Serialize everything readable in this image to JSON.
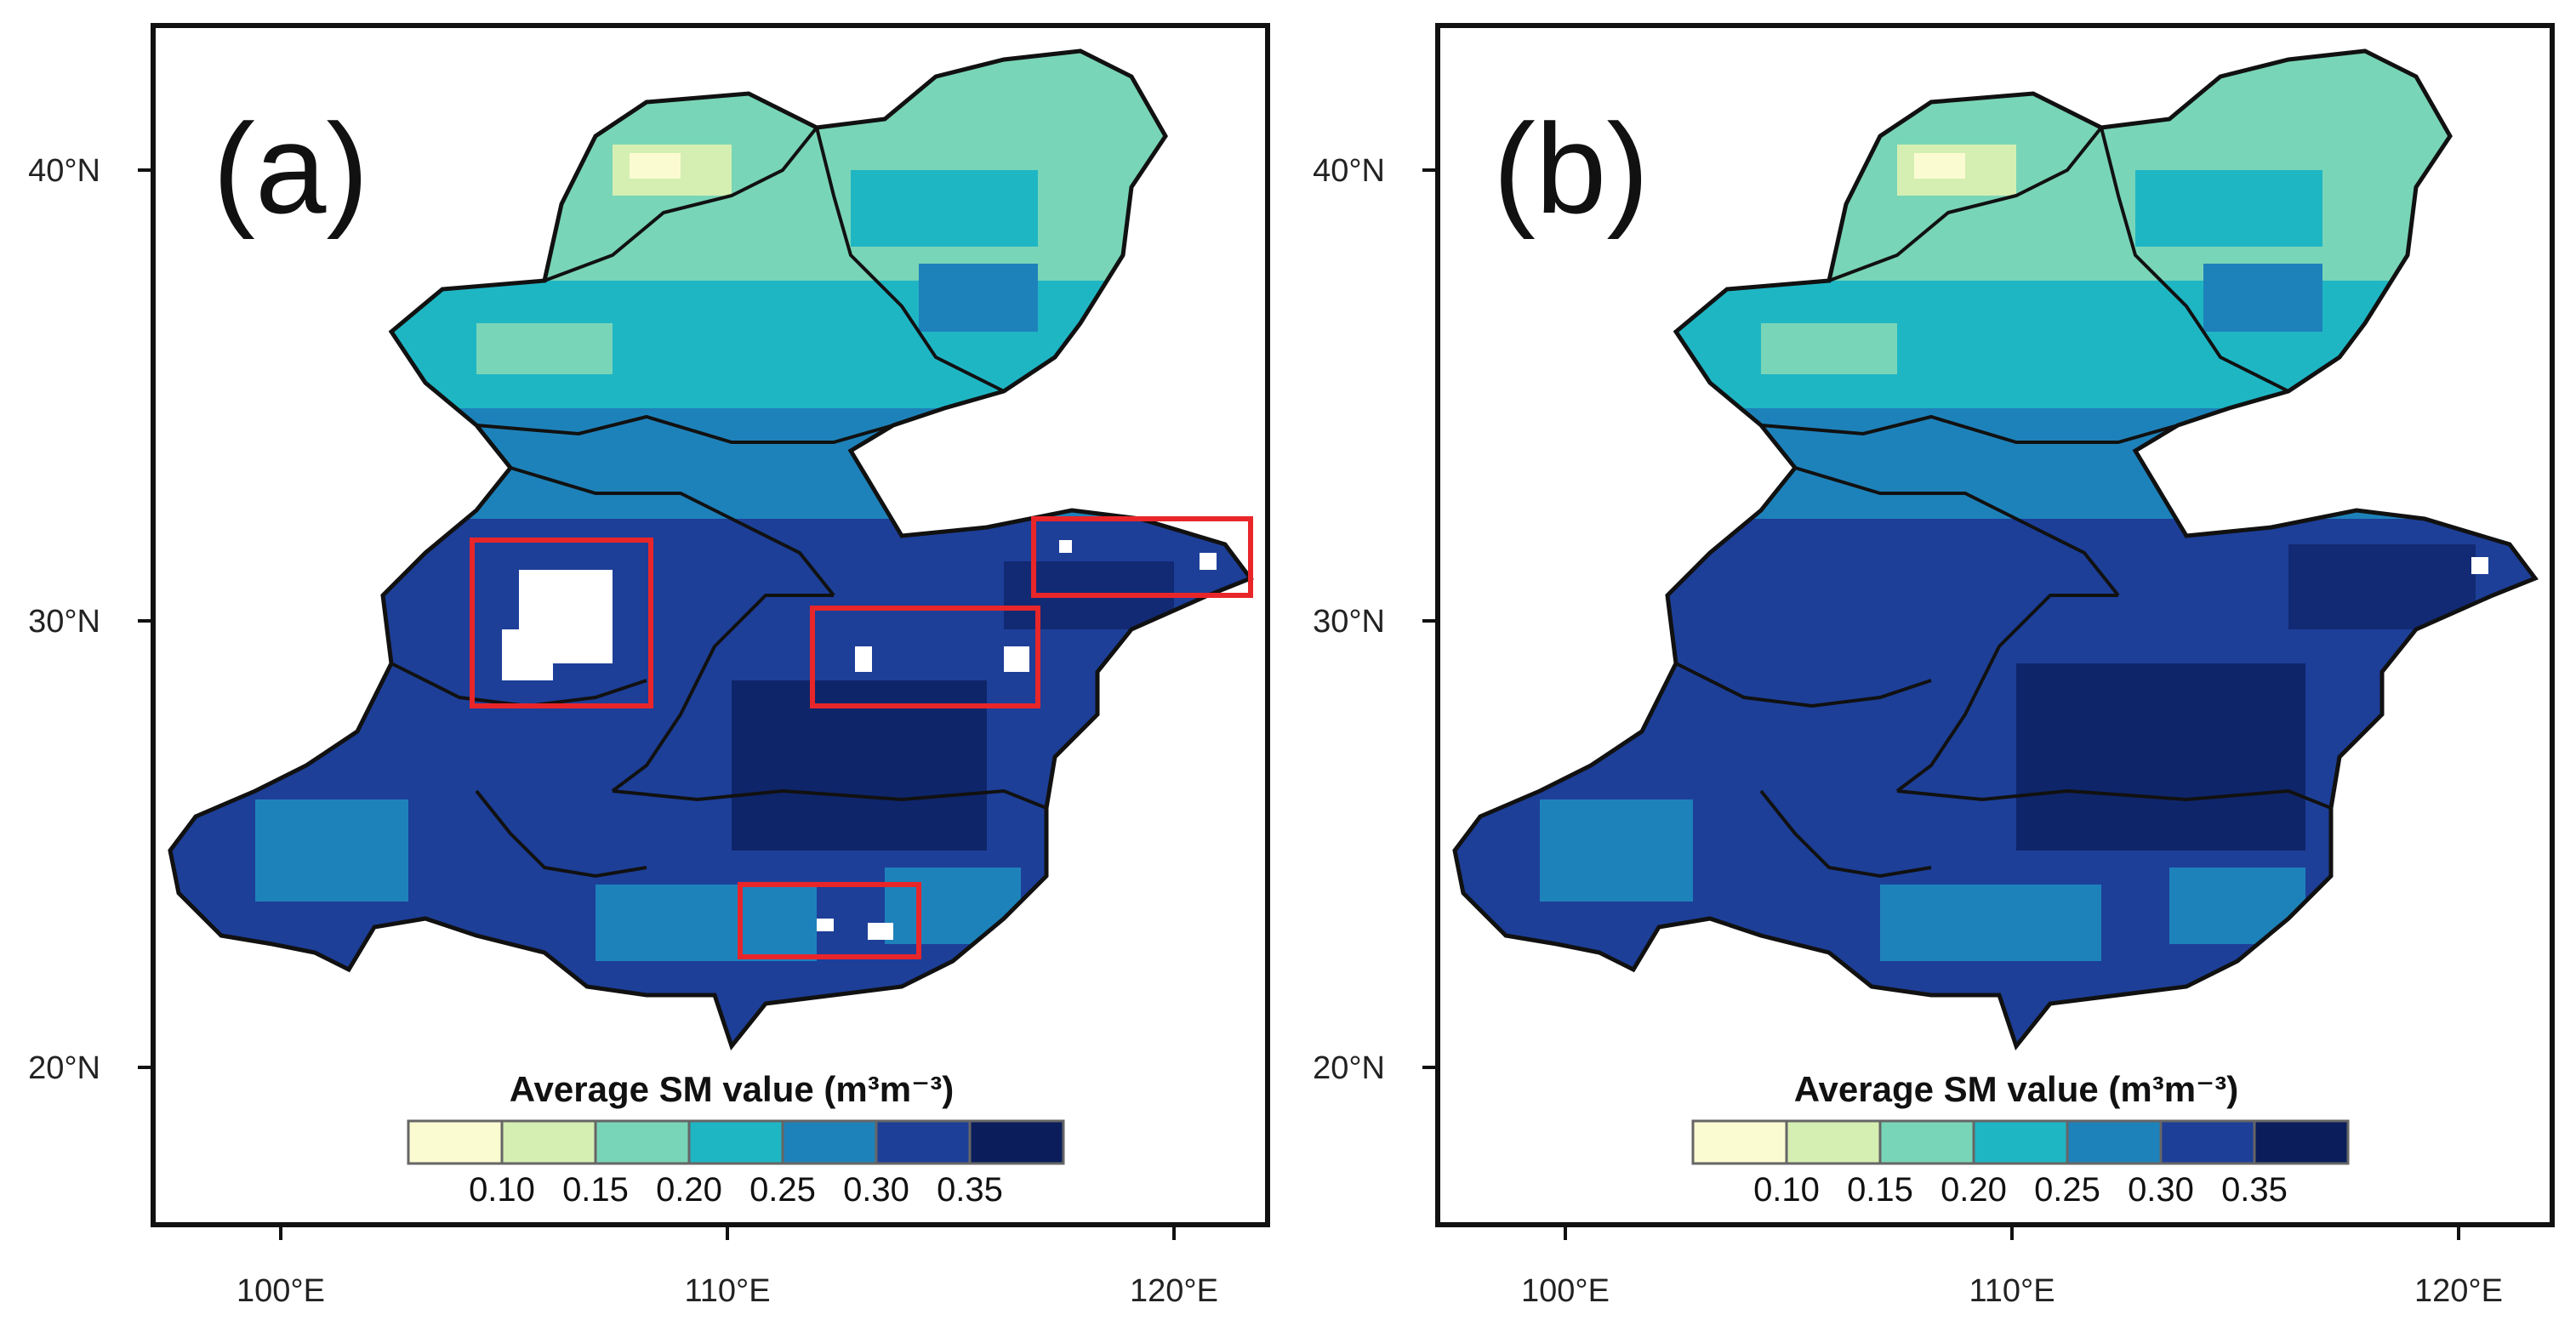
{
  "figure": {
    "colorbar_colors": [
      "#fbfbd2",
      "#d5efb2",
      "#79d5b7",
      "#1fb6c4",
      "#1e82ba",
      "#1d3f98",
      "#0b1d5a"
    ],
    "land_fill_colors": {
      "north_dry": "#79d5b7",
      "north_mid": "#1fb6c4",
      "transition": "#1e82ba",
      "south_wet": "#1d3f98",
      "very_wet": "#0b1d5a",
      "boundary": "#111111",
      "highlight_box": "#e8262a",
      "missing": "#ffffff"
    },
    "panels": [
      {
        "id": "a",
        "label": "(a)",
        "lat_ticks": [
          "40°N",
          "30°N",
          "20°N"
        ],
        "lon_ticks": [
          "100°E",
          "110°E",
          "120°E"
        ],
        "colorbar_title": "Average SM value (m³m⁻³)",
        "colorbar_ticks": [
          "0.10",
          "0.15",
          "0.20",
          "0.25",
          "0.30",
          "0.35"
        ],
        "highlight_boxes": 4
      },
      {
        "id": "b",
        "label": "(b)",
        "lat_ticks": [
          "40°N",
          "30°N",
          "20°N"
        ],
        "lon_ticks": [
          "100°E",
          "110°E",
          "120°E"
        ],
        "colorbar_title": "Average SM value (m³m⁻³)",
        "colorbar_ticks": [
          "0.10",
          "0.15",
          "0.20",
          "0.25",
          "0.30",
          "0.35"
        ],
        "highlight_boxes": 0
      }
    ]
  }
}
